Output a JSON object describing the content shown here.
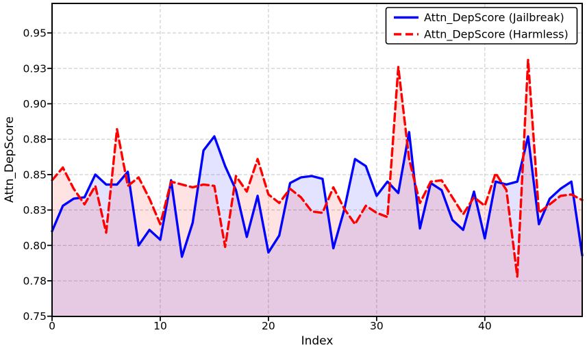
{
  "chart_data": {
    "type": "line",
    "title": "",
    "xlabel": "Index",
    "ylabel": "Attn_DepScore",
    "xlim": [
      0,
      49
    ],
    "ylim": [
      0.75,
      0.971
    ],
    "grid": "dashed",
    "grid_color": "#c9c9c9",
    "legend_position": "top-right",
    "x": [
      0,
      1,
      2,
      3,
      4,
      5,
      6,
      7,
      8,
      9,
      10,
      11,
      12,
      13,
      14,
      15,
      16,
      17,
      18,
      19,
      20,
      21,
      22,
      23,
      24,
      25,
      26,
      27,
      28,
      29,
      30,
      31,
      32,
      33,
      34,
      35,
      36,
      37,
      38,
      39,
      40,
      41,
      42,
      43,
      44,
      45,
      46,
      47,
      48,
      49
    ],
    "xticks": {
      "values": [
        0,
        10,
        20,
        30,
        40
      ],
      "labels": [
        "0",
        "10",
        "20",
        "30",
        "40"
      ]
    },
    "yticks": {
      "values": [
        0.75,
        0.775,
        0.8,
        0.825,
        0.85,
        0.875,
        0.9,
        0.925,
        0.95
      ],
      "labels": [
        "0.75",
        "0.78",
        "0.80",
        "0.83",
        "0.85",
        "0.88",
        "0.90",
        "0.93",
        "0.95"
      ]
    },
    "fill_baseline": 0.75,
    "series": [
      {
        "name": "Attn_DepScore (Jailbreak)",
        "color": "#0000ff",
        "style": "solid",
        "fill_opacity": 0.11,
        "values": [
          0.81,
          0.828,
          0.833,
          0.834,
          0.85,
          0.843,
          0.843,
          0.852,
          0.8,
          0.811,
          0.804,
          0.846,
          0.792,
          0.816,
          0.867,
          0.877,
          0.856,
          0.839,
          0.806,
          0.835,
          0.795,
          0.807,
          0.844,
          0.848,
          0.849,
          0.847,
          0.798,
          0.825,
          0.861,
          0.856,
          0.835,
          0.845,
          0.837,
          0.88,
          0.812,
          0.844,
          0.839,
          0.818,
          0.811,
          0.838,
          0.805,
          0.845,
          0.843,
          0.845,
          0.877,
          0.815,
          0.833,
          0.84,
          0.845,
          0.793
        ]
      },
      {
        "name": "Attn_DepScore (Harmless)",
        "color": "#ff0000",
        "style": "dashed",
        "fill_opacity": 0.11,
        "values": [
          0.846,
          0.855,
          0.84,
          0.829,
          0.842,
          0.809,
          0.882,
          0.842,
          0.848,
          0.833,
          0.815,
          0.845,
          0.843,
          0.841,
          0.843,
          0.842,
          0.799,
          0.849,
          0.838,
          0.861,
          0.836,
          0.83,
          0.84,
          0.834,
          0.824,
          0.823,
          0.841,
          0.826,
          0.815,
          0.828,
          0.823,
          0.82,
          0.926,
          0.861,
          0.83,
          0.845,
          0.846,
          0.834,
          0.822,
          0.834,
          0.828,
          0.851,
          0.839,
          0.778,
          0.931,
          0.823,
          0.829,
          0.835,
          0.836,
          0.832
        ]
      }
    ]
  }
}
